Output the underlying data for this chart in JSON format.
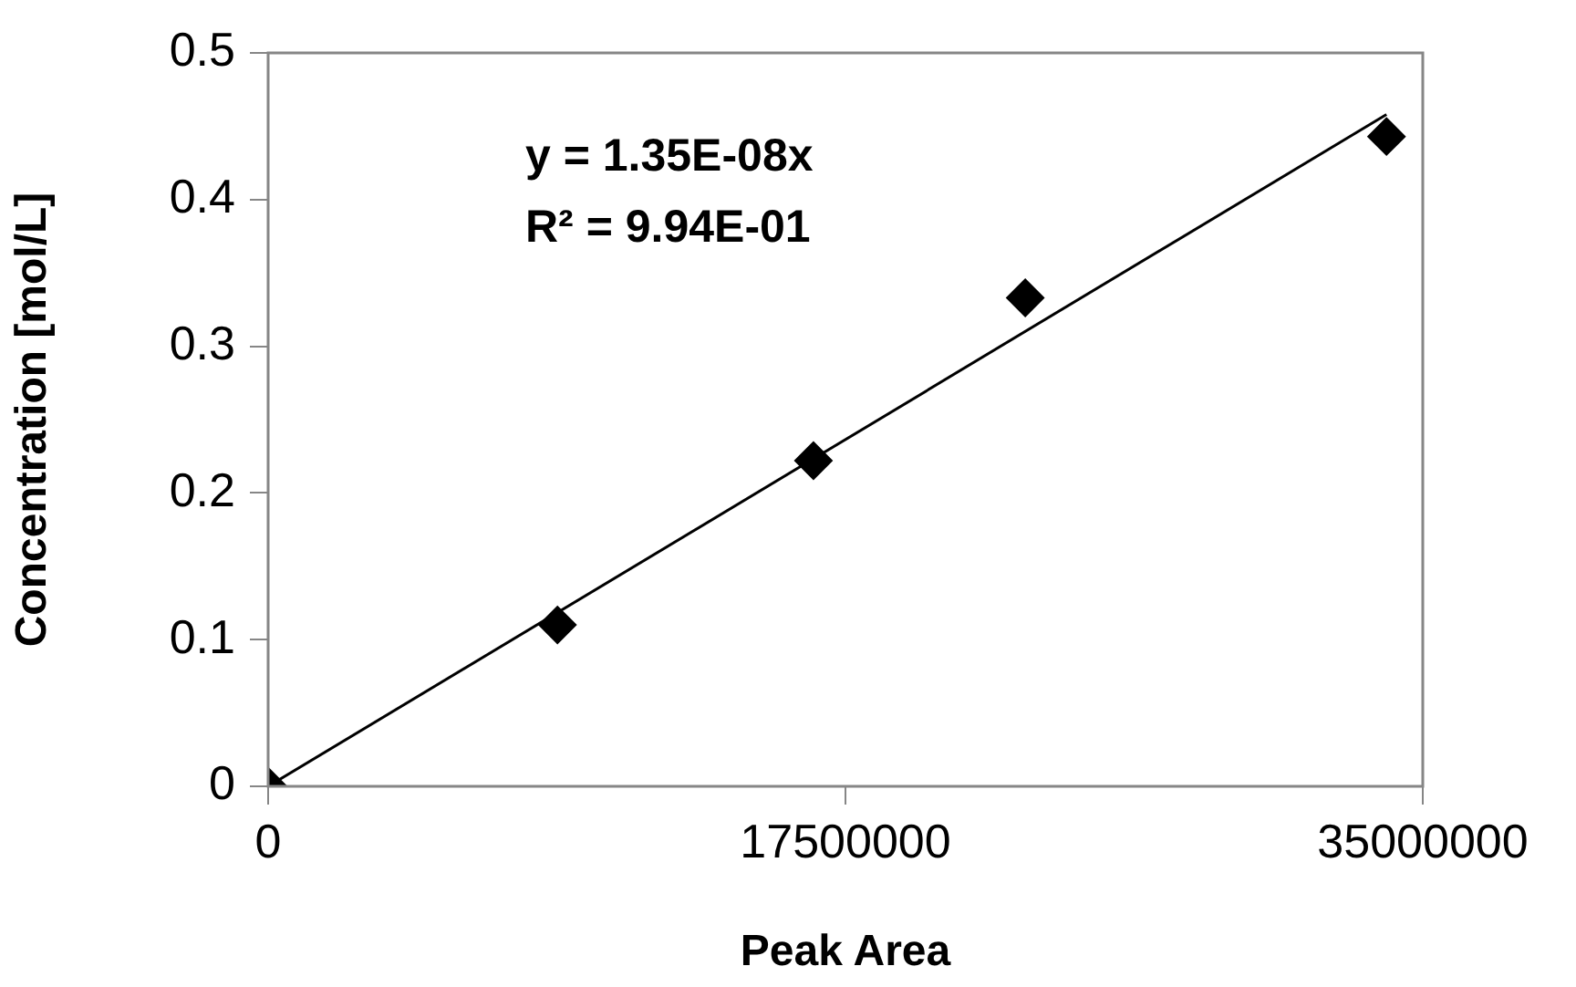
{
  "chart_data": {
    "type": "scatter",
    "xlabel": "Peak Area",
    "ylabel": "Concentration [mol/L]",
    "series": [
      {
        "color": "#000000",
        "marker": "diamond",
        "x": [
          0,
          8770000,
          16530000,
          22950000,
          33900000
        ],
        "values": [
          0,
          0.11,
          0.222,
          0.333,
          0.443
        ]
      },
      {
        "type": "line",
        "color": "#000000",
        "marker": "none",
        "x": [
          0,
          33900000
        ],
        "values": [
          0,
          0.458
        ]
      }
    ],
    "xlim": [
      0,
      35000000
    ],
    "xticks": [
      0,
      17500000,
      35000000
    ],
    "ylim": [
      0,
      0.5
    ],
    "yticks": [
      0,
      0.1,
      0.2,
      0.3,
      0.4,
      0.5
    ],
    "grid": false,
    "legend": false,
    "annotations": [
      "y = 1.35E-08x",
      "R² = 9.94E-01"
    ]
  }
}
